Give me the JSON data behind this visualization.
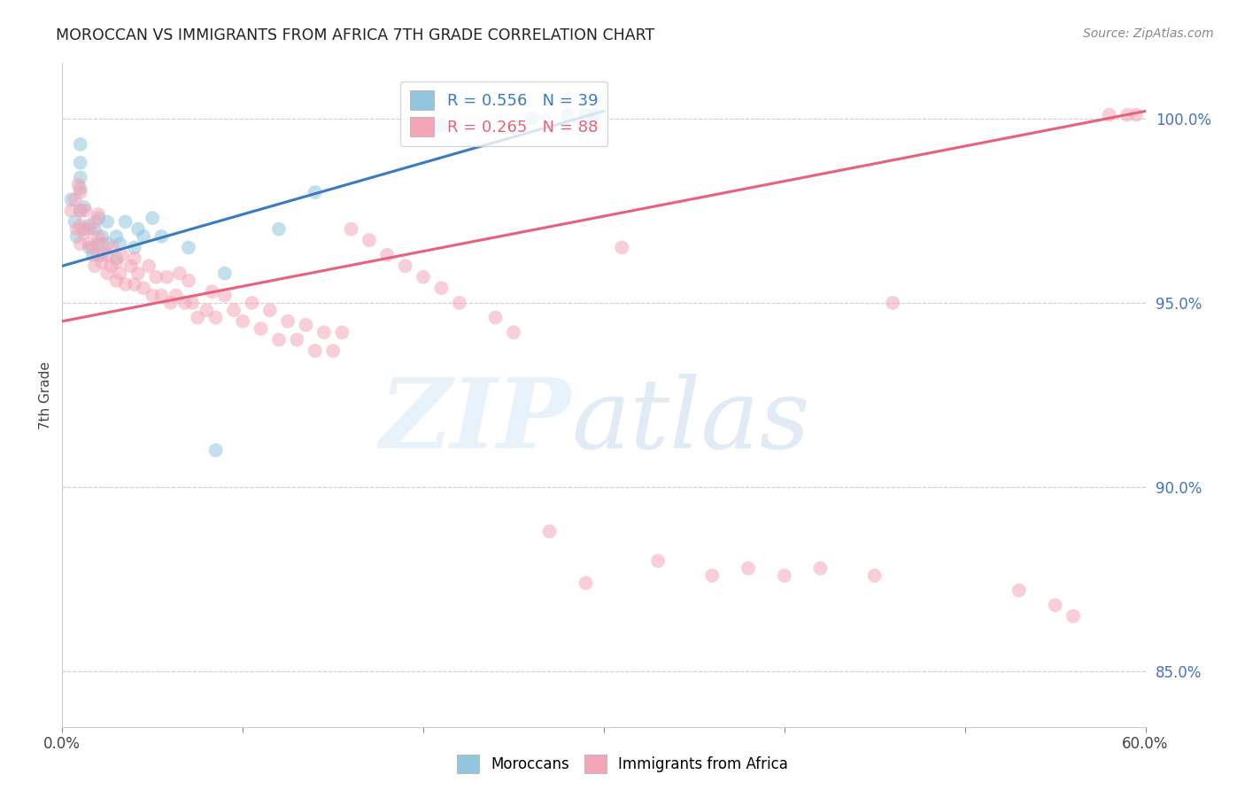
{
  "title": "MOROCCAN VS IMMIGRANTS FROM AFRICA 7TH GRADE CORRELATION CHART",
  "source": "Source: ZipAtlas.com",
  "ylabel": "7th Grade",
  "xlim": [
    0.0,
    0.6
  ],
  "ylim": [
    0.835,
    1.015
  ],
  "blue_R": 0.556,
  "blue_N": 39,
  "pink_R": 0.265,
  "pink_N": 88,
  "blue_color": "#92c5de",
  "pink_color": "#f4a6b8",
  "blue_line_color": "#3a7abf",
  "pink_line_color": "#e8607a",
  "legend_label_blue": "Moroccans",
  "legend_label_pink": "Immigrants from Africa",
  "blue_line_x0": 0.0,
  "blue_line_y0": 0.96,
  "blue_line_x1": 0.3,
  "blue_line_y1": 1.002,
  "pink_line_x0": 0.0,
  "pink_line_y0": 0.945,
  "pink_line_x1": 0.6,
  "pink_line_y1": 1.002,
  "blue_x": [
    0.005,
    0.007,
    0.008,
    0.01,
    0.01,
    0.01,
    0.01,
    0.01,
    0.012,
    0.012,
    0.015,
    0.015,
    0.017,
    0.018,
    0.02,
    0.02,
    0.022,
    0.022,
    0.025,
    0.025,
    0.03,
    0.03,
    0.032,
    0.035,
    0.04,
    0.042,
    0.045,
    0.05,
    0.055,
    0.07,
    0.085,
    0.09,
    0.12,
    0.14,
    0.21,
    0.26,
    0.28,
    0.29,
    0.295
  ],
  "blue_y": [
    0.978,
    0.972,
    0.968,
    0.975,
    0.981,
    0.984,
    0.988,
    0.993,
    0.97,
    0.976,
    0.965,
    0.971,
    0.963,
    0.97,
    0.966,
    0.973,
    0.963,
    0.968,
    0.966,
    0.972,
    0.962,
    0.968,
    0.966,
    0.972,
    0.965,
    0.97,
    0.968,
    0.973,
    0.968,
    0.965,
    0.91,
    0.958,
    0.97,
    0.98,
    0.998,
    1.0,
    1.001,
    1.001,
    1.001
  ],
  "pink_x": [
    0.005,
    0.007,
    0.008,
    0.009,
    0.01,
    0.01,
    0.01,
    0.01,
    0.012,
    0.013,
    0.015,
    0.015,
    0.017,
    0.018,
    0.018,
    0.02,
    0.02,
    0.02,
    0.022,
    0.022,
    0.025,
    0.025,
    0.027,
    0.028,
    0.03,
    0.03,
    0.032,
    0.033,
    0.035,
    0.038,
    0.04,
    0.04,
    0.042,
    0.045,
    0.048,
    0.05,
    0.052,
    0.055,
    0.058,
    0.06,
    0.063,
    0.065,
    0.068,
    0.07,
    0.072,
    0.075,
    0.08,
    0.083,
    0.085,
    0.09,
    0.095,
    0.1,
    0.105,
    0.11,
    0.115,
    0.12,
    0.125,
    0.13,
    0.135,
    0.14,
    0.145,
    0.15,
    0.155,
    0.16,
    0.17,
    0.18,
    0.19,
    0.2,
    0.21,
    0.22,
    0.24,
    0.25,
    0.27,
    0.29,
    0.31,
    0.33,
    0.36,
    0.38,
    0.4,
    0.42,
    0.45,
    0.46,
    0.53,
    0.55,
    0.56,
    0.58,
    0.59,
    0.595
  ],
  "pink_y": [
    0.975,
    0.978,
    0.97,
    0.982,
    0.966,
    0.971,
    0.975,
    0.98,
    0.969,
    0.975,
    0.966,
    0.97,
    0.965,
    0.96,
    0.972,
    0.963,
    0.968,
    0.974,
    0.961,
    0.966,
    0.958,
    0.963,
    0.96,
    0.965,
    0.956,
    0.961,
    0.958,
    0.963,
    0.955,
    0.96,
    0.955,
    0.962,
    0.958,
    0.954,
    0.96,
    0.952,
    0.957,
    0.952,
    0.957,
    0.95,
    0.952,
    0.958,
    0.95,
    0.956,
    0.95,
    0.946,
    0.948,
    0.953,
    0.946,
    0.952,
    0.948,
    0.945,
    0.95,
    0.943,
    0.948,
    0.94,
    0.945,
    0.94,
    0.944,
    0.937,
    0.942,
    0.937,
    0.942,
    0.97,
    0.967,
    0.963,
    0.96,
    0.957,
    0.954,
    0.95,
    0.946,
    0.942,
    0.888,
    0.874,
    0.965,
    0.88,
    0.876,
    0.878,
    0.876,
    0.878,
    0.876,
    0.95,
    0.872,
    0.868,
    0.865,
    1.001,
    1.001,
    1.001
  ]
}
